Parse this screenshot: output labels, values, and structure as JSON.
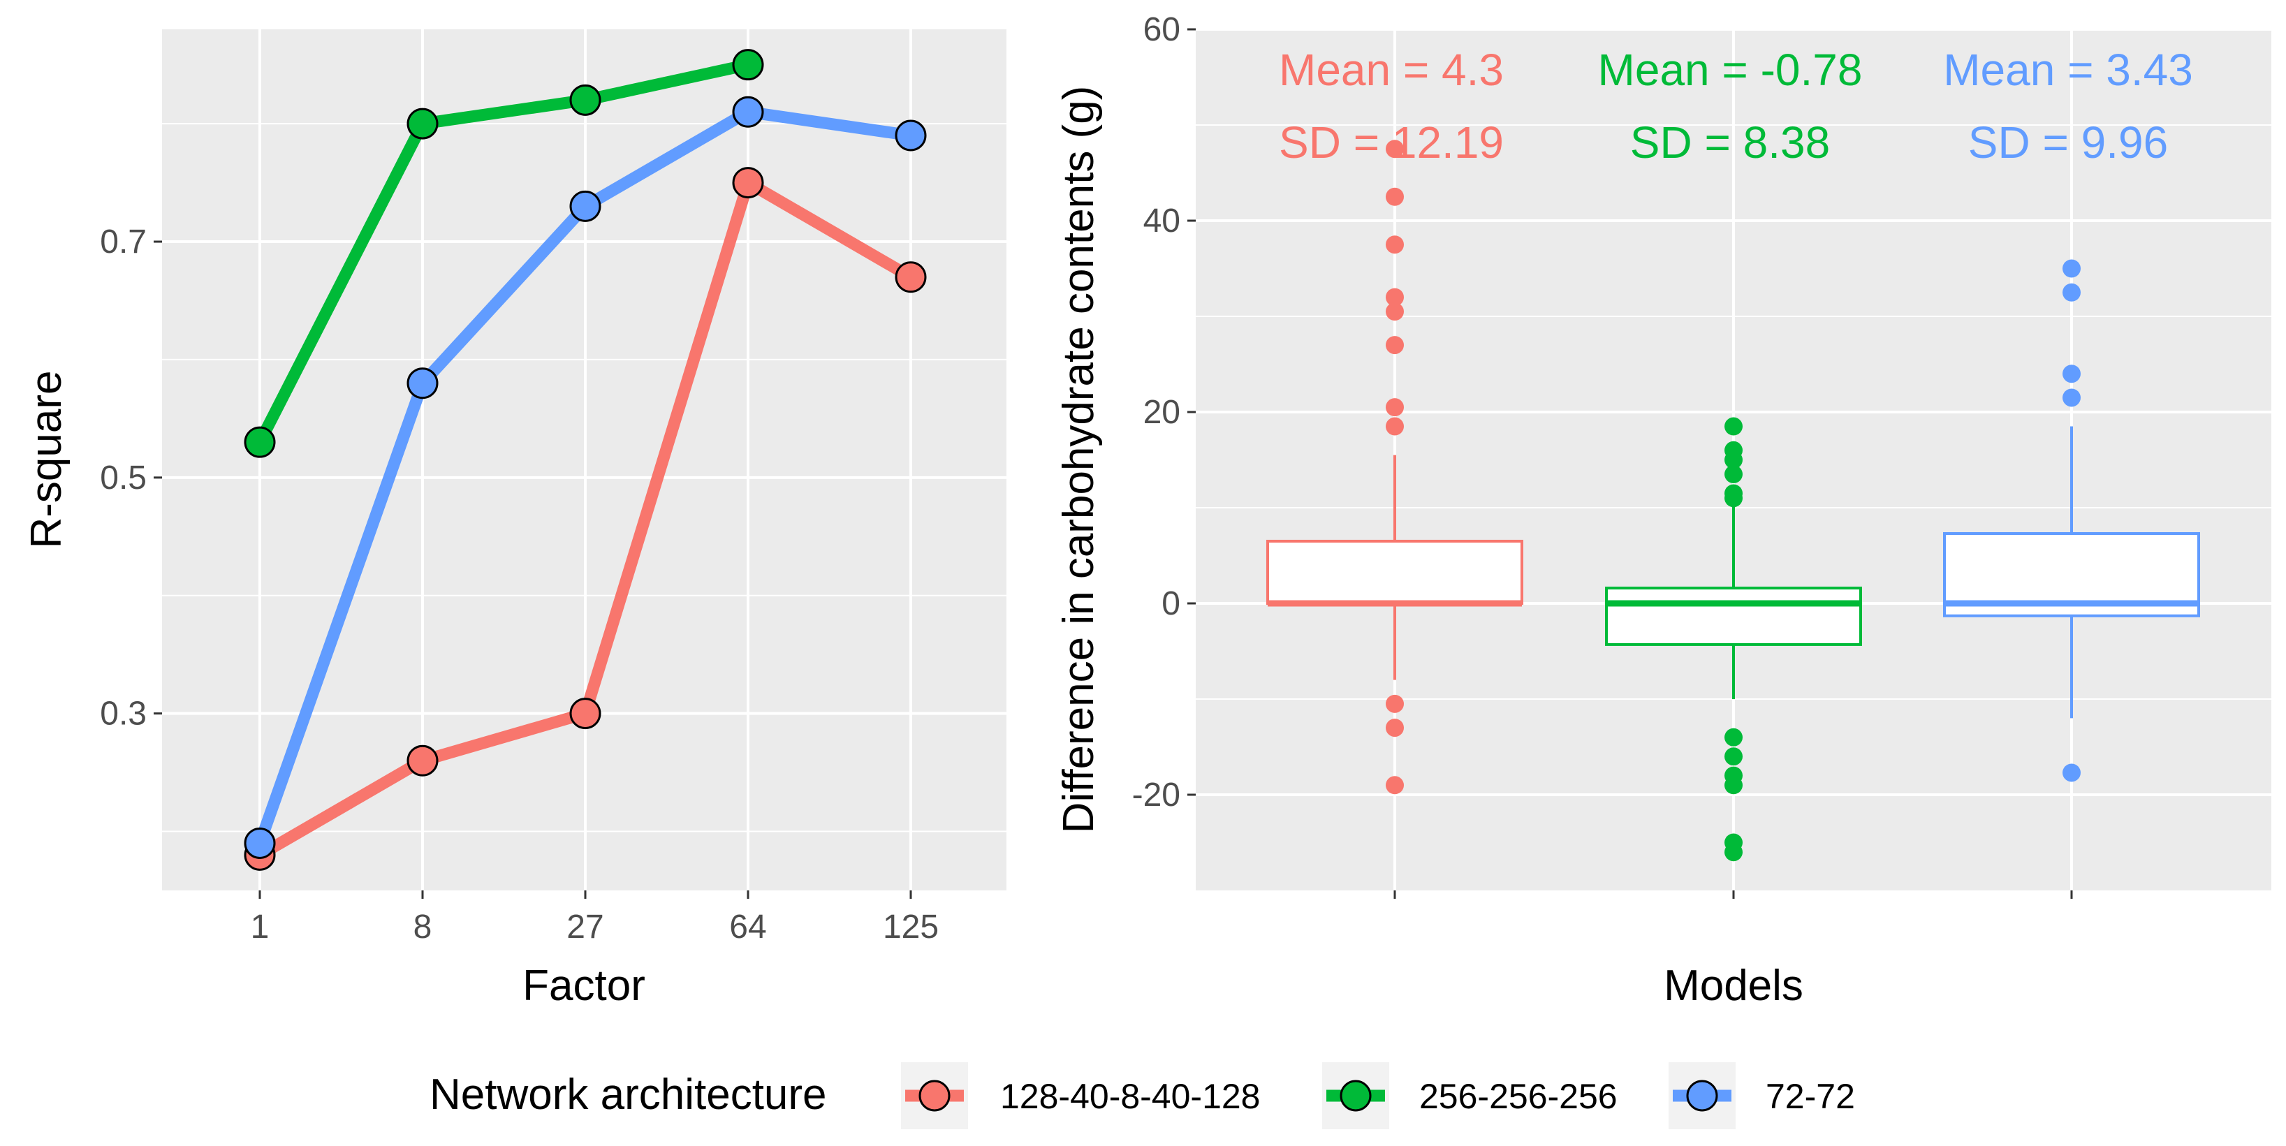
{
  "chart_data": [
    {
      "type": "line",
      "xlabel": "Factor",
      "ylabel": "R-square",
      "categories": [
        "1",
        "8",
        "27",
        "64",
        "125"
      ],
      "y_ticks": [
        0.3,
        0.5,
        0.7
      ],
      "y_tick_labels": [
        "0.3",
        "0.5",
        "0.7"
      ],
      "ylim": [
        0.15,
        0.88
      ],
      "grid": true,
      "series": [
        {
          "name": "128-40-8-40-128",
          "color": "#F8766D",
          "values": [
            0.18,
            0.26,
            0.3,
            0.75,
            0.67
          ]
        },
        {
          "name": "256-256-256",
          "color": "#00BA38",
          "values": [
            0.53,
            0.8,
            0.82,
            0.85,
            null
          ]
        },
        {
          "name": "72-72",
          "color": "#619CFF",
          "values": [
            0.19,
            0.58,
            0.73,
            0.81,
            0.79
          ]
        }
      ]
    },
    {
      "type": "box",
      "xlabel": "Models",
      "ylabel": "Difference in carbohydrate contents (g)",
      "y_ticks": [
        -20,
        0,
        20,
        40,
        60
      ],
      "y_tick_labels": [
        "-20",
        "0",
        "20",
        "40",
        "60"
      ],
      "ylim": [
        -30,
        60
      ],
      "grid": true,
      "boxes": [
        {
          "name": "128-40-8-40-128",
          "color": "#F8766D",
          "q1": 0.0,
          "median": 0.0,
          "q3": 6.5,
          "whisker_low": -8,
          "whisker_high": 15.5,
          "outliers": [
            47.5,
            42.5,
            37.5,
            32,
            30.5,
            27,
            20.5,
            18.5,
            -10.5,
            -13,
            -19
          ],
          "mean_text": "Mean = 4.3",
          "sd_text": "SD = 12.19"
        },
        {
          "name": "256-256-256",
          "color": "#00BA38",
          "q1": -4.3,
          "median": 0.0,
          "q3": 1.6,
          "whisker_low": -10,
          "whisker_high": 10.5,
          "outliers": [
            18.5,
            16,
            15,
            13.5,
            11.5,
            11,
            -14,
            -16,
            -18,
            -19,
            -25,
            -26
          ],
          "mean_text": "Mean = -0.78",
          "sd_text": "SD = 8.38"
        },
        {
          "name": "72-72",
          "color": "#619CFF",
          "q1": -1.3,
          "median": 0.0,
          "q3": 7.3,
          "whisker_low": -12,
          "whisker_high": 18.5,
          "outliers": [
            35,
            32.5,
            24,
            21.5,
            -17.7
          ],
          "mean_text": "Mean = 3.43",
          "sd_text": "SD = 9.96"
        }
      ]
    }
  ],
  "legend": {
    "title": "Network architecture",
    "items": [
      {
        "label": "128-40-8-40-128",
        "color": "#F8766D"
      },
      {
        "label": "256-256-256",
        "color": "#00BA38"
      },
      {
        "label": "72-72",
        "color": "#619CFF"
      }
    ]
  }
}
